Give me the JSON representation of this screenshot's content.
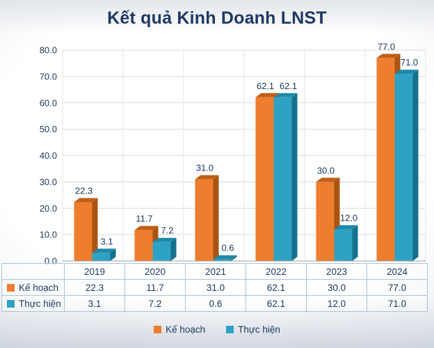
{
  "chart_data": {
    "type": "bar",
    "style": "3d-clustered-column",
    "title": "Kết quả Kinh Doanh LNST",
    "categories": [
      "2019",
      "2020",
      "2021",
      "2022",
      "2023",
      "2024"
    ],
    "series": [
      {
        "name": "Kế hoạch",
        "color": "#EE7D2E",
        "side_color": "#A85413",
        "top_color": "#C05F17",
        "values": [
          22.3,
          11.7,
          31.0,
          62.1,
          30.0,
          77.0
        ]
      },
      {
        "name": "Thực hiện",
        "color": "#2EA2C4",
        "side_color": "#16718D",
        "top_color": "#1F89A9",
        "values": [
          3.1,
          7.2,
          0.6,
          62.1,
          12.0,
          71.0
        ]
      }
    ],
    "ylim": [
      0,
      80
    ],
    "ytick_step": 10,
    "ytick_format": "one_decimal",
    "grid": true,
    "legend_position": "bottom",
    "data_table_shown": true,
    "text_color": "#1F3864",
    "gridline_color": "#D9D9D9",
    "table_border_color": "#A8C4D9"
  }
}
